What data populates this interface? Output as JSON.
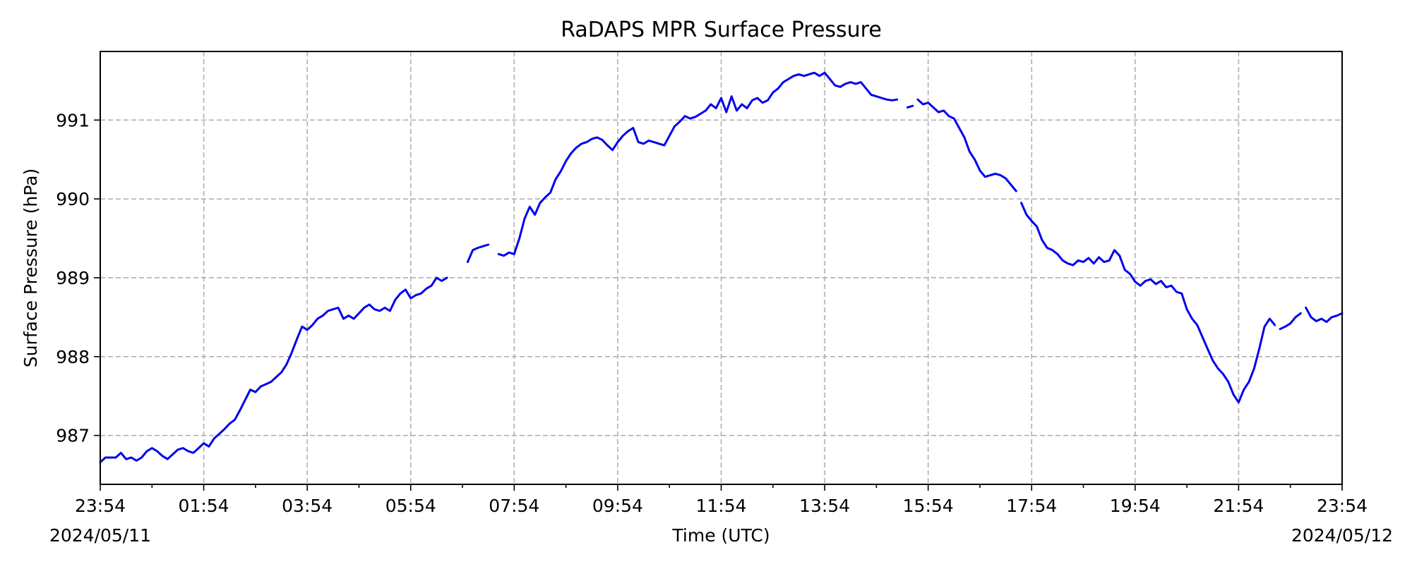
{
  "chart_data": {
    "type": "line",
    "title": "RaDAPS MPR Surface Pressure",
    "xlabel": "Time (UTC)",
    "ylabel": "Surface Pressure (hPa)",
    "x_unit": "hours",
    "xlim": [
      0,
      24
    ],
    "ylim": [
      986.38,
      991.87
    ],
    "x_ticks": [
      {
        "x": 0,
        "label": "23:54",
        "date": "2024/05/11"
      },
      {
        "x": 2,
        "label": "01:54"
      },
      {
        "x": 4,
        "label": "03:54"
      },
      {
        "x": 6,
        "label": "05:54"
      },
      {
        "x": 8,
        "label": "07:54"
      },
      {
        "x": 10,
        "label": "09:54"
      },
      {
        "x": 12,
        "label": "11:54"
      },
      {
        "x": 14,
        "label": "13:54"
      },
      {
        "x": 16,
        "label": "15:54"
      },
      {
        "x": 18,
        "label": "17:54"
      },
      {
        "x": 20,
        "label": "19:54"
      },
      {
        "x": 22,
        "label": "21:54"
      },
      {
        "x": 24,
        "label": "23:54",
        "date": "2024/05/12"
      }
    ],
    "x_minor_ticks": [
      1,
      3,
      5,
      7,
      9,
      11,
      13,
      15,
      17,
      19,
      21,
      23
    ],
    "y_ticks": [
      987,
      988,
      989,
      990,
      991
    ],
    "grid": true,
    "series_color": "#0000ee",
    "series": [
      {
        "segments": [
          [
            [
              0,
              986.66
            ],
            [
              0.1,
              986.72
            ],
            [
              0.3,
              986.72
            ],
            [
              0.4,
              986.78
            ],
            [
              0.5,
              986.7
            ],
            [
              0.6,
              986.72
            ],
            [
              0.7,
              986.68
            ],
            [
              0.8,
              986.72
            ],
            [
              0.9,
              986.8
            ],
            [
              1.0,
              986.84
            ],
            [
              1.1,
              986.8
            ],
            [
              1.2,
              986.74
            ],
            [
              1.3,
              986.7
            ],
            [
              1.4,
              986.76
            ],
            [
              1.5,
              986.82
            ],
            [
              1.6,
              986.84
            ],
            [
              1.7,
              986.8
            ],
            [
              1.8,
              986.78
            ],
            [
              1.9,
              986.84
            ],
            [
              2.0,
              986.9
            ],
            [
              2.1,
              986.86
            ],
            [
              2.2,
              986.96
            ],
            [
              2.3,
              987.02
            ],
            [
              2.4,
              987.08
            ],
            [
              2.5,
              987.15
            ],
            [
              2.6,
              987.2
            ],
            [
              2.7,
              987.32
            ],
            [
              2.8,
              987.45
            ],
            [
              2.9,
              987.58
            ],
            [
              3.0,
              987.55
            ],
            [
              3.1,
              987.62
            ],
            [
              3.2,
              987.65
            ],
            [
              3.3,
              987.68
            ],
            [
              3.4,
              987.74
            ],
            [
              3.5,
              987.8
            ],
            [
              3.6,
              987.9
            ],
            [
              3.7,
              988.05
            ],
            [
              3.8,
              988.22
            ],
            [
              3.9,
              988.38
            ],
            [
              4.0,
              988.34
            ],
            [
              4.1,
              988.4
            ],
            [
              4.2,
              988.48
            ],
            [
              4.3,
              988.52
            ],
            [
              4.4,
              988.58
            ],
            [
              4.5,
              988.6
            ],
            [
              4.6,
              988.62
            ],
            [
              4.7,
              988.48
            ],
            [
              4.8,
              988.52
            ],
            [
              4.9,
              988.48
            ],
            [
              5.0,
              988.55
            ],
            [
              5.1,
              988.62
            ],
            [
              5.2,
              988.66
            ],
            [
              5.3,
              988.6
            ],
            [
              5.4,
              988.58
            ],
            [
              5.5,
              988.62
            ],
            [
              5.6,
              988.58
            ],
            [
              5.7,
              988.72
            ],
            [
              5.8,
              988.8
            ],
            [
              5.9,
              988.85
            ],
            [
              6.0,
              988.74
            ],
            [
              6.1,
              988.78
            ],
            [
              6.2,
              988.8
            ],
            [
              6.3,
              988.86
            ],
            [
              6.4,
              988.9
            ],
            [
              6.5,
              989.0
            ],
            [
              6.6,
              988.96
            ],
            [
              6.7,
              989.0
            ]
          ],
          [
            [
              7.1,
              989.2
            ],
            [
              7.2,
              989.35
            ],
            [
              7.3,
              989.38
            ],
            [
              7.4,
              989.4
            ],
            [
              7.5,
              989.42
            ]
          ],
          [
            [
              7.7,
              989.3
            ],
            [
              7.8,
              989.28
            ],
            [
              7.9,
              989.32
            ],
            [
              8.0,
              989.3
            ]
          ],
          [
            [
              8.0,
              989.3
            ],
            [
              8.1,
              989.5
            ],
            [
              8.2,
              989.75
            ],
            [
              8.3,
              989.9
            ],
            [
              8.4,
              989.8
            ],
            [
              8.5,
              989.95
            ],
            [
              8.6,
              990.02
            ],
            [
              8.7,
              990.08
            ],
            [
              8.8,
              990.25
            ],
            [
              8.9,
              990.35
            ],
            [
              9.0,
              990.48
            ],
            [
              9.1,
              990.58
            ],
            [
              9.2,
              990.65
            ],
            [
              9.3,
              990.7
            ],
            [
              9.4,
              990.72
            ],
            [
              9.5,
              990.76
            ],
            [
              9.6,
              990.78
            ],
            [
              9.7,
              990.75
            ],
            [
              9.8,
              990.68
            ],
            [
              9.9,
              990.62
            ],
            [
              10.0,
              990.72
            ],
            [
              10.1,
              990.8
            ],
            [
              10.2,
              990.86
            ],
            [
              10.3,
              990.9
            ],
            [
              10.4,
              990.72
            ],
            [
              10.5,
              990.7
            ],
            [
              10.6,
              990.74
            ],
            [
              10.7,
              990.72
            ],
            [
              10.8,
              990.7
            ],
            [
              10.9,
              990.68
            ],
            [
              11.0,
              990.8
            ],
            [
              11.1,
              990.92
            ],
            [
              11.2,
              990.98
            ],
            [
              11.3,
              991.05
            ],
            [
              11.4,
              991.02
            ],
            [
              11.5,
              991.04
            ],
            [
              11.6,
              991.08
            ],
            [
              11.7,
              991.12
            ],
            [
              11.8,
              991.2
            ],
            [
              11.9,
              991.15
            ],
            [
              12.0,
              991.28
            ],
            [
              12.1,
              991.1
            ],
            [
              12.2,
              991.3
            ],
            [
              12.3,
              991.12
            ],
            [
              12.4,
              991.2
            ],
            [
              12.5,
              991.15
            ],
            [
              12.6,
              991.25
            ],
            [
              12.7,
              991.28
            ],
            [
              12.8,
              991.22
            ],
            [
              12.9,
              991.25
            ],
            [
              13.0,
              991.35
            ],
            [
              13.1,
              991.4
            ],
            [
              13.2,
              991.48
            ],
            [
              13.3,
              991.52
            ],
            [
              13.4,
              991.56
            ],
            [
              13.5,
              991.58
            ],
            [
              13.6,
              991.56
            ],
            [
              13.7,
              991.58
            ],
            [
              13.8,
              991.6
            ],
            [
              13.9,
              991.56
            ],
            [
              14.0,
              991.6
            ],
            [
              14.1,
              991.52
            ],
            [
              14.2,
              991.44
            ],
            [
              14.3,
              991.42
            ],
            [
              14.4,
              991.46
            ],
            [
              14.5,
              991.48
            ],
            [
              14.6,
              991.46
            ],
            [
              14.7,
              991.48
            ],
            [
              14.8,
              991.4
            ],
            [
              14.9,
              991.32
            ],
            [
              15.0,
              991.3
            ],
            [
              15.1,
              991.28
            ],
            [
              15.2,
              991.26
            ],
            [
              15.3,
              991.25
            ],
            [
              15.4,
              991.26
            ]
          ],
          [
            [
              15.6,
              991.16
            ],
            [
              15.7,
              991.18
            ]
          ],
          [
            [
              15.8,
              991.26
            ],
            [
              15.9,
              991.2
            ],
            [
              16.0,
              991.22
            ],
            [
              16.1,
              991.16
            ],
            [
              16.2,
              991.1
            ],
            [
              16.3,
              991.12
            ],
            [
              16.4,
              991.05
            ],
            [
              16.5,
              991.02
            ],
            [
              16.6,
              990.9
            ],
            [
              16.7,
              990.78
            ],
            [
              16.8,
              990.6
            ],
            [
              16.9,
              990.5
            ],
            [
              17.0,
              990.36
            ],
            [
              17.1,
              990.28
            ],
            [
              17.2,
              990.3
            ],
            [
              17.3,
              990.32
            ],
            [
              17.4,
              990.3
            ],
            [
              17.5,
              990.26
            ],
            [
              17.6,
              990.18
            ],
            [
              17.7,
              990.1
            ]
          ],
          [
            [
              17.8,
              989.95
            ],
            [
              17.9,
              989.8
            ],
            [
              18.0,
              989.72
            ]
          ],
          [
            [
              18.0,
              989.72
            ],
            [
              18.1,
              989.65
            ],
            [
              18.2,
              989.48
            ],
            [
              18.3,
              989.38
            ],
            [
              18.4,
              989.35
            ],
            [
              18.5,
              989.3
            ],
            [
              18.6,
              989.22
            ],
            [
              18.7,
              989.18
            ],
            [
              18.8,
              989.16
            ],
            [
              18.9,
              989.22
            ],
            [
              19.0,
              989.2
            ],
            [
              19.1,
              989.25
            ],
            [
              19.2,
              989.18
            ],
            [
              19.3,
              989.26
            ],
            [
              19.4,
              989.2
            ],
            [
              19.5,
              989.22
            ],
            [
              19.6,
              989.35
            ],
            [
              19.7,
              989.28
            ],
            [
              19.8,
              989.1
            ],
            [
              19.9,
              989.05
            ],
            [
              20.0,
              988.95
            ],
            [
              20.1,
              988.9
            ],
            [
              20.2,
              988.96
            ],
            [
              20.3,
              988.98
            ],
            [
              20.4,
              988.92
            ],
            [
              20.5,
              988.96
            ],
            [
              20.6,
              988.88
            ],
            [
              20.7,
              988.9
            ],
            [
              20.8,
              988.82
            ],
            [
              20.9,
              988.8
            ],
            [
              21.0,
              988.6
            ],
            [
              21.1,
              988.48
            ],
            [
              21.2,
              988.4
            ],
            [
              21.3,
              988.25
            ],
            [
              21.4,
              988.1
            ],
            [
              21.5,
              987.95
            ],
            [
              21.6,
              987.85
            ],
            [
              21.7,
              987.78
            ],
            [
              21.8,
              987.68
            ],
            [
              21.9,
              987.52
            ],
            [
              22.0,
              987.42
            ],
            [
              22.1,
              987.58
            ],
            [
              22.2,
              987.68
            ],
            [
              22.3,
              987.85
            ],
            [
              22.4,
              988.1
            ],
            [
              22.5,
              988.38
            ],
            [
              22.6,
              988.48
            ],
            [
              22.7,
              988.4
            ]
          ],
          [
            [
              22.8,
              988.35
            ],
            [
              22.9,
              988.38
            ],
            [
              23.0,
              988.42
            ],
            [
              23.1,
              988.5
            ],
            [
              23.2,
              988.55
            ]
          ],
          [
            [
              23.3,
              988.62
            ],
            [
              23.4,
              988.5
            ],
            [
              23.5,
              988.45
            ],
            [
              23.6,
              988.48
            ],
            [
              23.7,
              988.44
            ],
            [
              23.8,
              988.5
            ],
            [
              23.9,
              988.52
            ],
            [
              24.0,
              988.55
            ]
          ]
        ]
      }
    ]
  }
}
